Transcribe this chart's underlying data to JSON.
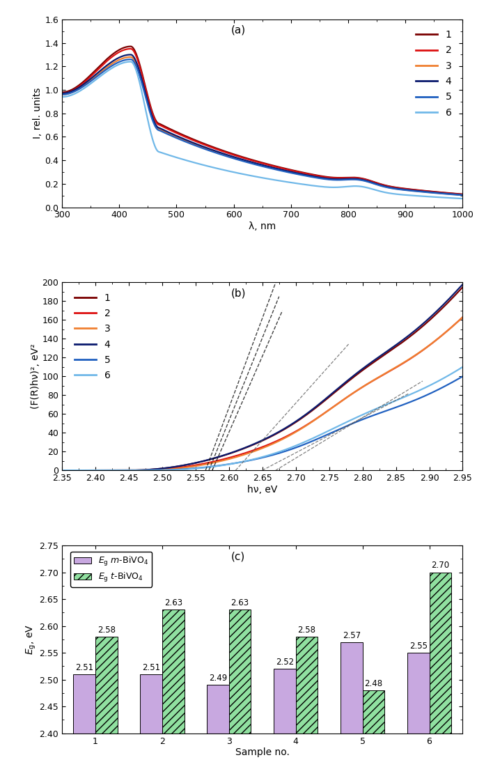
{
  "panel_a": {
    "title": "(a)",
    "xlabel": "λ, nm",
    "ylabel": "I, rel. units",
    "xlim": [
      300,
      1000
    ],
    "ylim": [
      0,
      1.6
    ],
    "yticks": [
      0,
      0.2,
      0.4,
      0.6,
      0.8,
      1.0,
      1.2,
      1.4,
      1.6
    ],
    "xticks": [
      300,
      400,
      500,
      600,
      700,
      800,
      900,
      1000
    ],
    "colors": [
      "#7a0000",
      "#dd1111",
      "#f08030",
      "#0a1a6e",
      "#2060c0",
      "#70b8e8"
    ],
    "labels": [
      "1",
      "2",
      "3",
      "4",
      "5",
      "6"
    ],
    "peak_scales": [
      1.37,
      1.35,
      1.28,
      1.3,
      1.26,
      1.24
    ],
    "start_vals": [
      0.98,
      0.97,
      0.96,
      0.97,
      0.96,
      0.94
    ]
  },
  "panel_b": {
    "title": "(b)",
    "xlabel": "hν, eV",
    "ylabel": "(F(R)hν)², eV²",
    "xlim": [
      2.35,
      2.95
    ],
    "ylim": [
      0,
      200
    ],
    "yticks": [
      0,
      20,
      40,
      60,
      80,
      100,
      120,
      140,
      160,
      180,
      200
    ],
    "xticks": [
      2.35,
      2.4,
      2.45,
      2.5,
      2.55,
      2.6,
      2.65,
      2.7,
      2.75,
      2.8,
      2.85,
      2.9,
      2.95
    ],
    "colors": [
      "#7a0000",
      "#dd1111",
      "#f08030",
      "#0a1a6e",
      "#2060c0",
      "#70b8e8"
    ],
    "labels": [
      "1",
      "2",
      "3",
      "4",
      "5",
      "6"
    ]
  },
  "panel_c": {
    "title": "(c)",
    "xlabel": "Sample no.",
    "ylabel": "$E_{\\mathrm{g}}$, eV",
    "xlim": [
      0.5,
      6.5
    ],
    "ylim": [
      2.4,
      2.75
    ],
    "yticks": [
      2.4,
      2.45,
      2.5,
      2.55,
      2.6,
      2.65,
      2.7,
      2.75
    ],
    "xticks": [
      1,
      2,
      3,
      4,
      5,
      6
    ],
    "m_bivo4": [
      2.51,
      2.51,
      2.49,
      2.52,
      2.57,
      2.55
    ],
    "t_bivo4": [
      2.58,
      2.63,
      2.63,
      2.58,
      2.48,
      2.7
    ],
    "bar_color_m": "#c8a8e0",
    "bar_color_t": "#90e0a0",
    "bar_hatch_t": "///",
    "legend_label_m": "$E_{\\mathrm{g}}$ $m$-BiVO$_4$",
    "legend_label_t": "$E_{\\mathrm{g}}$ $t$-BiVO$_4$"
  }
}
